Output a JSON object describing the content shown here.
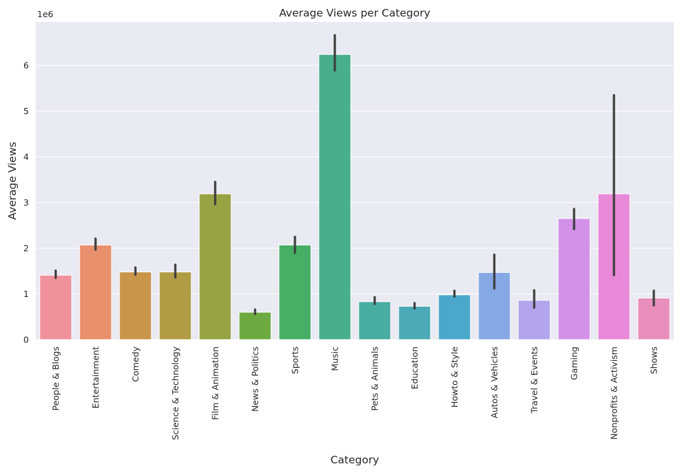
{
  "chart_data": {
    "type": "bar",
    "title": "Average Views per Category",
    "xlabel": "Category",
    "ylabel": "Average Views",
    "y_multiplier_label": "1e6",
    "ylim": [
      0,
      6.95
    ],
    "yticks": [
      0,
      1,
      2,
      3,
      4,
      5,
      6
    ],
    "grid": true,
    "categories": [
      "People & Blogs",
      "Entertainment",
      "Comedy",
      "Science & Technology",
      "Film & Animation",
      "News & Politics",
      "Sports",
      "Music",
      "Pets & Animals",
      "Education",
      "Howto & Style",
      "Autos & Vehicles",
      "Travel & Events",
      "Gaming",
      "Nonprofits & Activism",
      "Shows"
    ],
    "values": [
      1.41,
      2.07,
      1.48,
      1.48,
      3.19,
      0.6,
      2.07,
      6.24,
      0.83,
      0.73,
      0.98,
      1.47,
      0.86,
      2.65,
      3.19,
      0.91
    ],
    "error_low": [
      1.35,
      1.97,
      1.42,
      1.36,
      2.96,
      0.56,
      1.9,
      5.89,
      0.78,
      0.68,
      0.94,
      1.12,
      0.7,
      2.42,
      1.41,
      0.75
    ],
    "error_high": [
      1.51,
      2.21,
      1.58,
      1.64,
      3.45,
      0.66,
      2.25,
      6.66,
      0.93,
      0.8,
      1.07,
      1.86,
      1.08,
      2.86,
      5.35,
      1.07
    ],
    "colors": [
      "#ef929c",
      "#e9906d",
      "#c9954a",
      "#b09c45",
      "#98a444",
      "#6daa41",
      "#47ae65",
      "#49ae8c",
      "#49aca1",
      "#4baab5",
      "#4ba8cb",
      "#86a9e6",
      "#b3a4ee",
      "#d391e8",
      "#e88ad8",
      "#e88fbb"
    ]
  }
}
